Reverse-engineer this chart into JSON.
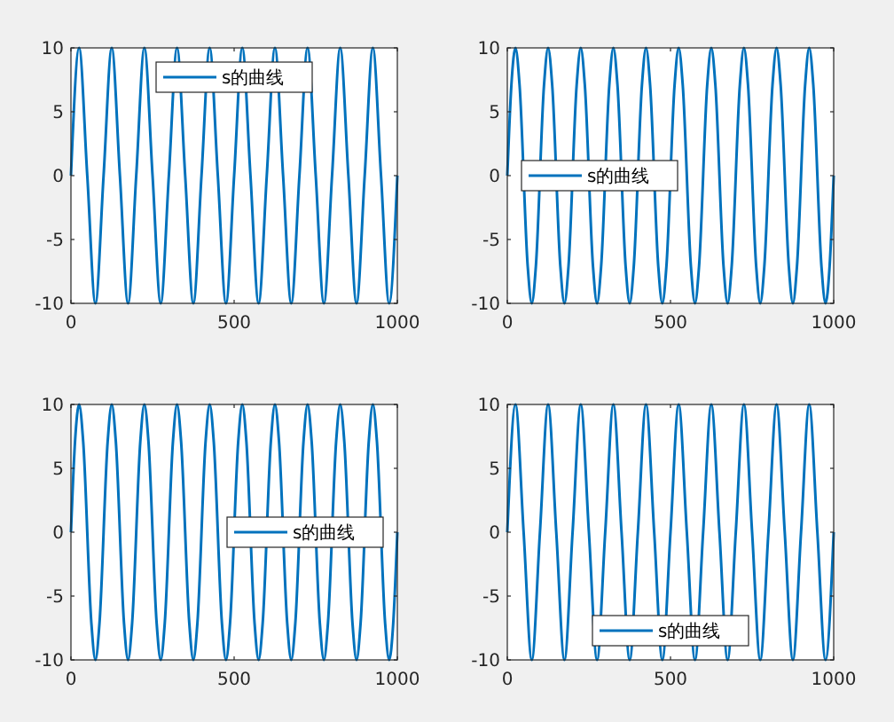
{
  "chart_data": [
    {
      "type": "line",
      "x": [
        0,
        25,
        50,
        75,
        100,
        125,
        150,
        175,
        200,
        225,
        250,
        275,
        300,
        325,
        350,
        375,
        400,
        425,
        450,
        475,
        500,
        525,
        550,
        575,
        600,
        625,
        650,
        675,
        700,
        725,
        750,
        775,
        800,
        825,
        850,
        875,
        900,
        925,
        950,
        975,
        1000
      ],
      "series": [
        {
          "name": "s的曲线",
          "color": "#0072bd",
          "values": [
            0,
            10,
            0,
            -10,
            0,
            10,
            0,
            -10,
            0,
            10,
            0,
            -10,
            0,
            10,
            0,
            -10,
            0,
            10,
            0,
            -10,
            0,
            10,
            0,
            -10,
            0,
            10,
            0,
            -10,
            0,
            10,
            0,
            -10,
            0,
            10,
            0,
            -10,
            0,
            10,
            0,
            -10,
            0
          ]
        }
      ],
      "xlim": [
        0,
        1000
      ],
      "ylim": [
        -10,
        10
      ],
      "xticks": [
        0,
        500,
        1000
      ],
      "yticks": [
        -10,
        -5,
        0,
        5,
        10
      ],
      "legend": "top"
    },
    {
      "type": "line",
      "x": [
        0,
        12.5,
        25,
        37.5,
        62.5,
        75,
        87.5,
        112.5,
        125,
        137.5,
        162.5,
        175,
        187.5,
        212.5,
        225,
        237.5,
        262.5,
        275,
        287.5,
        312.5,
        325,
        337.5,
        362.5,
        375,
        387.5,
        412.5,
        425,
        437.5,
        462.5,
        475,
        487.5,
        512.5,
        525,
        537.5,
        562.5,
        575,
        587.5,
        612.5,
        625,
        637.5,
        662.5,
        675,
        687.5,
        712.5,
        725,
        737.5,
        762.5,
        775,
        787.5,
        812.5,
        825,
        837.5,
        862.5,
        875,
        887.5,
        912.5,
        925,
        937.5,
        962.5,
        975,
        987.5,
        1000
      ],
      "series": [
        {
          "name": "s的曲线",
          "color": "#0072bd",
          "values": [
            0,
            7.1,
            10,
            7.1,
            -7.1,
            -10,
            -7.1,
            7.1,
            10,
            7.1,
            -7.1,
            -10,
            -7.1,
            7.1,
            10,
            7.1,
            -7.1,
            -10,
            -7.1,
            7.1,
            10,
            7.1,
            -7.1,
            -10,
            -7.1,
            7.1,
            10,
            7.1,
            -7.1,
            -10,
            -7.1,
            7.1,
            10,
            7.1,
            -7.1,
            -10,
            -7.1,
            7.1,
            10,
            7.1,
            -7.1,
            -10,
            -7.1,
            7.1,
            10,
            7.1,
            -7.1,
            -10,
            -7.1,
            7.1,
            10,
            7.1,
            -7.1,
            -10,
            -7.1,
            7.1,
            10,
            7.1,
            -7.1,
            -10,
            -7.1,
            0
          ]
        }
      ],
      "xlim": [
        0,
        1000
      ],
      "ylim": [
        -10,
        10
      ],
      "xticks": [
        0,
        500,
        1000
      ],
      "yticks": [
        -10,
        -5,
        0,
        5,
        10
      ],
      "legend": "left"
    },
    {
      "type": "line",
      "x": [
        0,
        12.5,
        25,
        37.5,
        62.5,
        75,
        87.5,
        112.5,
        125,
        137.5,
        162.5,
        175,
        187.5,
        212.5,
        225,
        237.5,
        262.5,
        275,
        287.5,
        312.5,
        325,
        337.5,
        362.5,
        375,
        387.5,
        412.5,
        425,
        437.5,
        462.5,
        475,
        487.5,
        512.5,
        525,
        537.5,
        562.5,
        575,
        587.5,
        612.5,
        625,
        637.5,
        662.5,
        675,
        687.5,
        712.5,
        725,
        737.5,
        762.5,
        775,
        787.5,
        812.5,
        825,
        837.5,
        862.5,
        875,
        887.5,
        912.5,
        925,
        937.5,
        962.5,
        975,
        987.5,
        1000
      ],
      "series": [
        {
          "name": "s的曲线",
          "color": "#0072bd",
          "values": [
            0,
            7.1,
            10,
            7.1,
            -7.1,
            -10,
            -7.1,
            7.1,
            10,
            7.1,
            -7.1,
            -10,
            -7.1,
            7.1,
            10,
            7.1,
            -7.1,
            -10,
            -7.1,
            7.1,
            10,
            7.1,
            -7.1,
            -10,
            -7.1,
            7.1,
            10,
            7.1,
            -7.1,
            -10,
            -7.1,
            7.1,
            10,
            7.1,
            -7.1,
            -10,
            -7.1,
            7.1,
            10,
            7.1,
            -7.1,
            -10,
            -7.1,
            7.1,
            10,
            7.1,
            -7.1,
            -10,
            -7.1,
            7.1,
            10,
            7.1,
            -7.1,
            -10,
            -7.1,
            7.1,
            10,
            7.1,
            -7.1,
            -10,
            -7.1,
            0
          ]
        }
      ],
      "xlim": [
        0,
        1000
      ],
      "ylim": [
        -10,
        10
      ],
      "xticks": [
        0,
        500,
        1000
      ],
      "yticks": [
        -10,
        -5,
        0,
        5,
        10
      ],
      "legend": "right"
    },
    {
      "type": "line",
      "x": [
        0,
        25,
        50,
        75,
        100,
        125,
        150,
        175,
        200,
        225,
        250,
        275,
        300,
        325,
        350,
        375,
        400,
        425,
        450,
        475,
        500,
        525,
        550,
        575,
        600,
        625,
        650,
        675,
        700,
        725,
        750,
        775,
        800,
        825,
        850,
        875,
        900,
        925,
        950,
        975,
        1000
      ],
      "series": [
        {
          "name": "s的曲线",
          "color": "#0072bd",
          "values": [
            0,
            10,
            0,
            -10,
            0,
            10,
            0,
            -10,
            0,
            10,
            0,
            -10,
            0,
            10,
            0,
            -10,
            0,
            10,
            0,
            -10,
            0,
            10,
            0,
            -10,
            0,
            10,
            0,
            -10,
            0,
            10,
            0,
            -10,
            0,
            10,
            0,
            -10,
            0,
            10,
            0,
            -10,
            0
          ]
        }
      ],
      "xlim": [
        0,
        1000
      ],
      "ylim": [
        -10,
        10
      ],
      "xticks": [
        0,
        500,
        1000
      ],
      "yticks": [
        -10,
        -5,
        0,
        5,
        10
      ],
      "legend": "bottom"
    }
  ]
}
